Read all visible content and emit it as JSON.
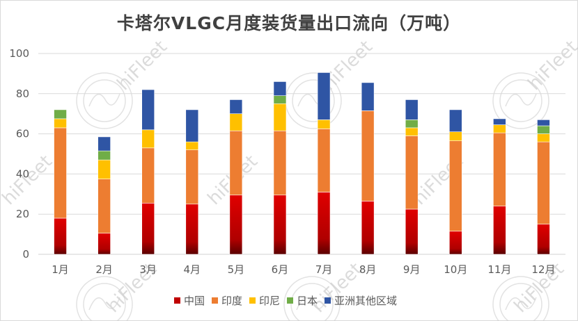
{
  "watermark": "hiFleet",
  "chart_data": {
    "type": "bar",
    "stacked": true,
    "title": "卡塔尔VLGC月度装货量出口流向（万吨）",
    "categories": [
      "1月",
      "2月",
      "3月",
      "4月",
      "5月",
      "6月",
      "7月",
      "8月",
      "9月",
      "10月",
      "11月",
      "12月"
    ],
    "ylim": [
      0,
      100
    ],
    "yticks": [
      0,
      20,
      40,
      60,
      80,
      100
    ],
    "grid": true,
    "legend_position": "bottom",
    "series": [
      {
        "name": "中国",
        "color": "#c00000",
        "values": [
          18,
          10.5,
          25.5,
          25,
          29.5,
          29.5,
          31,
          26.5,
          22.5,
          11.5,
          24,
          15
        ]
      },
      {
        "name": "印度",
        "color": "#ed7d31",
        "values": [
          45,
          27,
          27.5,
          27,
          32,
          32,
          31.5,
          45,
          36.5,
          45,
          36.5,
          41
        ]
      },
      {
        "name": "印尼",
        "color": "#ffc000",
        "values": [
          4.5,
          9.5,
          9,
          4,
          8.5,
          13.5,
          4.5,
          0,
          4,
          4.5,
          4,
          4
        ]
      },
      {
        "name": "日本",
        "color": "#70ad47",
        "values": [
          4.5,
          4.5,
          0,
          0,
          0,
          4,
          0,
          0,
          4,
          0,
          0,
          4
        ]
      },
      {
        "name": "亚洲其他区域",
        "color": "#2f55a4",
        "values": [
          0,
          7,
          20,
          16,
          7,
          7,
          23.5,
          14,
          10,
          11,
          3,
          3
        ]
      }
    ]
  }
}
